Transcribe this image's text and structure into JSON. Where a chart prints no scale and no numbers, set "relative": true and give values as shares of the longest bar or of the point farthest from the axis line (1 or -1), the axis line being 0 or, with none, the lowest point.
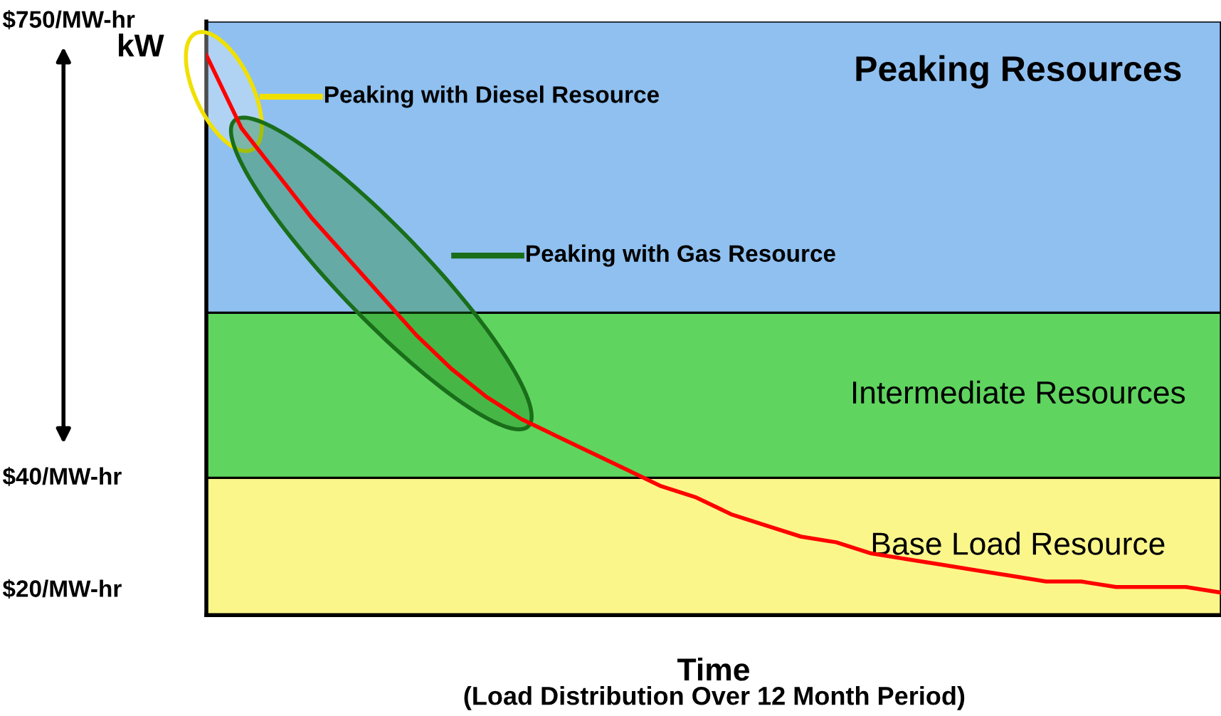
{
  "chart_data": {
    "type": "line",
    "relative": true,
    "xlabel": "Time",
    "ylabel": "kW",
    "categories": [
      null,
      null,
      null,
      null,
      null,
      null,
      null,
      null,
      null,
      null,
      null,
      null,
      null,
      null,
      null,
      null,
      null,
      null,
      null,
      null,
      null,
      null,
      null,
      null,
      null,
      null,
      null,
      null,
      null,
      null
    ],
    "series": [
      {
        "color": "#ff0000",
        "values": [
          1,
          0.87,
          0.79,
          0.71,
          0.64,
          0.57,
          0.5,
          0.44,
          0.39,
          0.35,
          0.32,
          0.29,
          0.26,
          0.23,
          0.21,
          0.18,
          0.16,
          0.14,
          0.13,
          0.11,
          0.1,
          0.09,
          0.08,
          0.07,
          0.06,
          0.06,
          0.05,
          0.05,
          0.05,
          0.04
        ]
      }
    ],
    "bands": [
      {
        "axis": "y",
        "from": 0,
        "to": 0.245,
        "label": "Base Load Resource",
        "color": "#fbf68a"
      },
      {
        "axis": "y",
        "from": 0.245,
        "to": 0.54,
        "label": "Intermediate Resources",
        "color": "#5fd45f"
      },
      {
        "axis": "y",
        "from": 0.54,
        "to": 1.06,
        "label": "Peaking Resources",
        "color": "#8fc0f0"
      }
    ],
    "annotations": [
      "Peaking with Diesel Resource",
      "Peaking with Gas Resource",
      "$750/MW-hr",
      "$40/MW-hr",
      "$20/MW-hr",
      "(Load Distribution Over 12 Month Period)"
    ],
    "grid": false,
    "legend": false
  }
}
